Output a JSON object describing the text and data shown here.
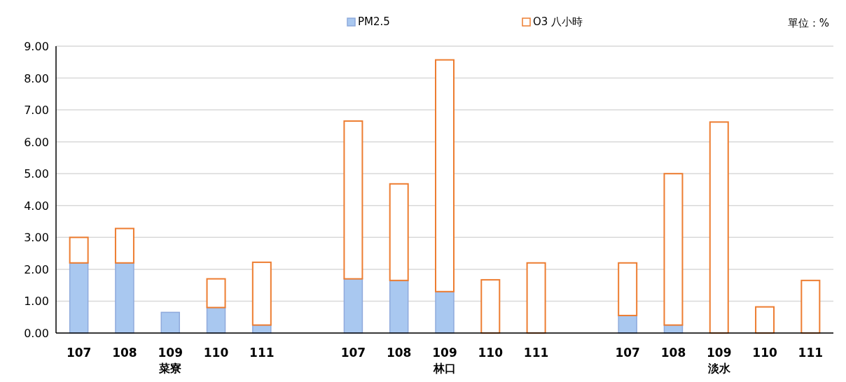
{
  "chart_data": {
    "type": "bar",
    "stacked": true,
    "categories": [
      "107",
      "108",
      "109",
      "110",
      "111",
      null,
      "107",
      "108",
      "109",
      "110",
      "111",
      null,
      "107",
      "108",
      "109",
      "110",
      "111"
    ],
    "series": [
      {
        "name": "PM2.5",
        "color": "#a9c8f0",
        "values": [
          2.2,
          2.2,
          0.65,
          0.8,
          0.25,
          null,
          1.7,
          1.65,
          1.3,
          0,
          0,
          null,
          0.55,
          0.25,
          0,
          0,
          0
        ]
      },
      {
        "name": "O3 八小時",
        "color": "#ed7d31",
        "values": [
          0.8,
          1.08,
          0,
          0.9,
          1.97,
          null,
          4.95,
          3.03,
          7.27,
          1.67,
          2.2,
          null,
          1.65,
          4.75,
          6.62,
          0.82,
          1.65
        ]
      }
    ],
    "ylim": [
      0,
      9
    ],
    "yticks": [
      {
        "value": 0,
        "label": "0.00"
      },
      {
        "value": 1,
        "label": "1.00"
      },
      {
        "value": 2,
        "label": "2.00"
      },
      {
        "value": 3,
        "label": "3.00"
      },
      {
        "value": 4,
        "label": "4.00"
      },
      {
        "value": 5,
        "label": "5.00"
      },
      {
        "value": 6,
        "label": "6.00"
      },
      {
        "value": 7,
        "label": "7.00"
      },
      {
        "value": 8,
        "label": "8.00"
      },
      {
        "value": 9,
        "label": "9.00"
      }
    ],
    "grid": "y",
    "legend": "top",
    "annotations": [
      "菜寮",
      "林口",
      "淡水",
      "單位：%"
    ]
  }
}
